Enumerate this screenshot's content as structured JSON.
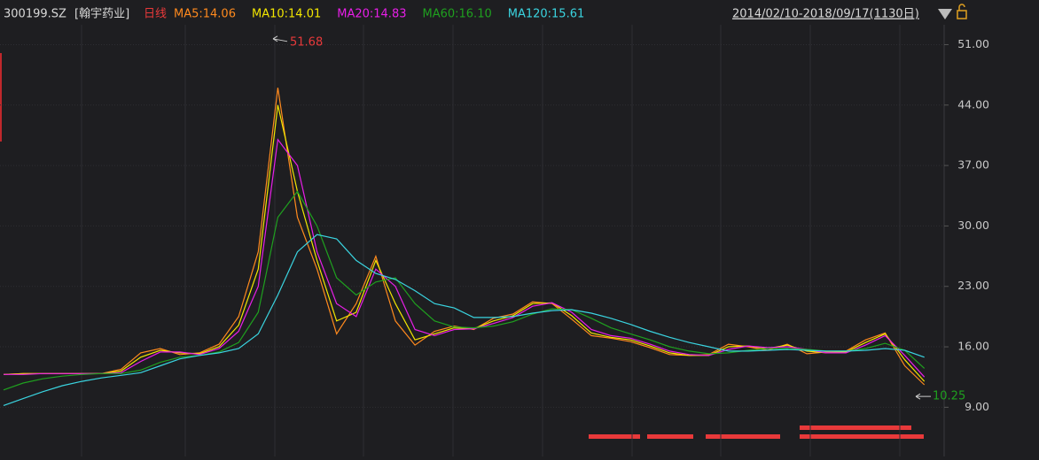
{
  "chart_data": {
    "type": "line",
    "title": "300199.SZ",
    "subtitle": "[翰宇药业]",
    "period": "日线",
    "date_range": "2014/02/10-2018/09/17(1130日)",
    "high": 51.68,
    "low": 10.25,
    "ylim": [
      3.3,
      53.3
    ],
    "yticks": [
      {
        "value": 51,
        "label": "51.00"
      },
      {
        "value": 44,
        "label": "44.00"
      },
      {
        "value": 37,
        "label": "37.00"
      },
      {
        "value": 30,
        "label": "30.00"
      },
      {
        "value": 23,
        "label": "23.00"
      },
      {
        "value": 16,
        "label": "16.00"
      },
      {
        "value": 9,
        "label": "9.00"
      }
    ],
    "grid": true,
    "categories": [
      null,
      null,
      null,
      null,
      null,
      null,
      null,
      null,
      null,
      null,
      null,
      null,
      null,
      null,
      null,
      null,
      null,
      null,
      null,
      null,
      null,
      null,
      null,
      null,
      null,
      null,
      null,
      null,
      null,
      null,
      null,
      null,
      null,
      null,
      null,
      null,
      null,
      null,
      null,
      null,
      null,
      null,
      null,
      null,
      null,
      null,
      null,
      null
    ],
    "series": [
      {
        "name": "MA5:14.06",
        "color": "#ff8a1e",
        "values": [
          12.8,
          12.9,
          12.9,
          12.9,
          12.9,
          12.9,
          13.4,
          15.3,
          15.8,
          15.1,
          15.3,
          16.3,
          19.5,
          27,
          46,
          31,
          25,
          17.5,
          21,
          26.5,
          19,
          16.2,
          17.8,
          18.4,
          18,
          19.3,
          19.8,
          21.2,
          21,
          19.2,
          17.3,
          17,
          16.6,
          15.9,
          15.1,
          15,
          15.1,
          16.3,
          16,
          15.6,
          16.3,
          15.2,
          15.4,
          15.5,
          16.8,
          17.6,
          13.8,
          11.6
        ]
      },
      {
        "name": "MA10:14.01",
        "color": "#f2e600",
        "values": [
          12.8,
          12.9,
          12.9,
          12.9,
          12.9,
          12.9,
          13.2,
          14.8,
          15.6,
          15.3,
          15.2,
          16,
          18.5,
          25,
          44,
          34,
          26,
          19,
          20,
          26,
          21,
          16.8,
          17.5,
          18.2,
          18.1,
          19,
          19.6,
          21,
          21.1,
          19.6,
          17.6,
          17.1,
          16.8,
          16.1,
          15.3,
          15,
          15,
          16,
          16.1,
          15.8,
          16.2,
          15.5,
          15.3,
          15.4,
          16.5,
          17.5,
          14.5,
          12
        ]
      },
      {
        "name": "MA20:14.83",
        "color": "#e81ee8",
        "values": [
          12.8,
          12.8,
          12.9,
          12.9,
          12.9,
          12.9,
          13,
          14.3,
          15.4,
          15.4,
          15.1,
          15.8,
          17.8,
          23,
          40,
          37,
          27,
          21,
          19.5,
          25,
          23,
          18,
          17.3,
          18,
          18.1,
          18.7,
          19.4,
          20.7,
          21.1,
          20,
          18,
          17.3,
          17,
          16.3,
          15.5,
          15.1,
          15,
          15.7,
          16.1,
          15.9,
          16,
          15.7,
          15.3,
          15.3,
          16.2,
          17.3,
          15,
          12.5
        ]
      },
      {
        "name": "MA60:16.10",
        "color": "#1fa01f",
        "values": [
          11,
          11.8,
          12.3,
          12.6,
          12.8,
          12.9,
          12.9,
          13.3,
          14.2,
          14.8,
          15,
          15.4,
          16.5,
          20,
          31,
          34,
          30,
          24,
          22,
          23.5,
          24,
          21,
          19,
          18.3,
          18.2,
          18.4,
          18.9,
          19.8,
          20.4,
          20.3,
          19.3,
          18.2,
          17.5,
          16.8,
          16,
          15.5,
          15.2,
          15.3,
          15.6,
          15.8,
          15.8,
          15.7,
          15.5,
          15.5,
          15.8,
          16.4,
          15.6,
          13.5
        ]
      },
      {
        "name": "MA120:15.61",
        "color": "#3ad4e0",
        "values": [
          9.2,
          10,
          10.8,
          11.5,
          12,
          12.4,
          12.7,
          13,
          13.8,
          14.6,
          15,
          15.3,
          15.8,
          17.5,
          22,
          27,
          29,
          28.5,
          26,
          24.5,
          23.8,
          22.5,
          21,
          20.5,
          19.4,
          19.4,
          19.5,
          19.9,
          20.2,
          20.3,
          19.9,
          19.3,
          18.6,
          17.8,
          17.1,
          16.5,
          16,
          15.5,
          15.5,
          15.6,
          15.7,
          15.6,
          15.5,
          15.5,
          15.6,
          15.8,
          15.6,
          14.8
        ]
      }
    ]
  }
}
